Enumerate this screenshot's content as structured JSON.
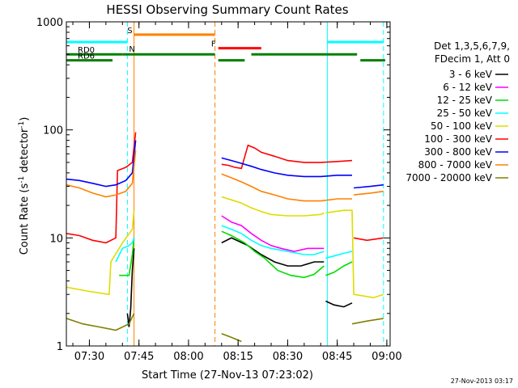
{
  "chart_data": {
    "type": "line",
    "title": "HESSI Observing Summary Count Rates",
    "xlabel": "Start Time (27-Nov-13 07:23:02)",
    "ylabel": "Count Rate (s⁻¹ detector⁻¹)",
    "ylabel_main": "Count Rate (s",
    "ylabel_mid": " detector",
    "ylabel_end": ")",
    "ylabel_sup": "-1",
    "yscale": "log",
    "xlim": [
      "07:23:02",
      "09:01:00"
    ],
    "ylim": [
      1,
      1000
    ],
    "x_ticks": [
      "07:30",
      "07:45",
      "08:00",
      "08:15",
      "08:30",
      "08:45",
      "09:00"
    ],
    "y_ticks": [
      "1",
      "10",
      "100",
      "1000"
    ],
    "timestamp": "27-Nov-2013 03:17",
    "legend": {
      "header1": "Det 1,3,5,6,7,9,",
      "header2": "FDecim 1, Att 0",
      "placement": "right"
    },
    "series": [
      {
        "name": "3 - 6 keV",
        "color": "#000000",
        "segments": [
          {
            "t": [
              "07:41:30",
              "07:42:00",
              "07:42:30",
              "07:43:00",
              "07:43:30"
            ],
            "v": [
              2.0,
              1.5,
              2.2,
              5.0,
              8.0
            ]
          },
          {
            "t": [
              "08:10:00",
              "08:13:00",
              "08:18:00",
              "08:22:00",
              "08:26:00",
              "08:30:00",
              "08:34:00",
              "08:38:00",
              "08:41:00"
            ],
            "v": [
              9.0,
              10.0,
              8.5,
              7.0,
              6.0,
              5.5,
              5.5,
              6.0,
              6.0
            ]
          },
          {
            "t": [
              "08:41:30",
              "08:44:00",
              "08:47:00",
              "08:49:30"
            ],
            "v": [
              2.6,
              2.4,
              2.3,
              2.5
            ]
          }
        ]
      },
      {
        "name": "6 - 12 keV",
        "color": "#ff00ff",
        "segments": [
          {
            "t": [
              "08:10:00",
              "08:13:00",
              "08:16:00",
              "08:19:00",
              "08:22:00",
              "08:25:00",
              "08:28:00",
              "08:32:00",
              "08:36:00",
              "08:40:00",
              "08:41:00"
            ],
            "v": [
              16.0,
              14.0,
              13.0,
              11.0,
              9.5,
              8.5,
              8.0,
              7.5,
              8.0,
              8.0,
              8.0
            ]
          }
        ]
      },
      {
        "name": "12 - 25 keV",
        "color": "#00dd00",
        "segments": [
          {
            "t": [
              "07:39:00",
              "07:40:30",
              "07:42:00",
              "07:43:00",
              "07:43:30"
            ],
            "v": [
              4.5,
              4.5,
              4.5,
              7.0,
              10.0
            ]
          },
          {
            "t": [
              "08:10:00",
              "08:13:00",
              "08:17:00",
              "08:20:00",
              "08:23:00",
              "08:27:00",
              "08:31:00",
              "08:35:00",
              "08:38:00",
              "08:41:00"
            ],
            "v": [
              11.5,
              10.5,
              9.0,
              7.5,
              6.5,
              5.0,
              4.5,
              4.3,
              4.6,
              5.5
            ]
          },
          {
            "t": [
              "08:41:30",
              "08:44:00",
              "08:47:00",
              "08:49:30"
            ],
            "v": [
              4.5,
              4.8,
              5.5,
              6.0
            ]
          }
        ]
      },
      {
        "name": "25 - 50 keV",
        "color": "#00ffff",
        "segments": [
          {
            "t": [
              "07:38:00",
              "07:40:00",
              "07:42:00",
              "07:43:00",
              "07:43:30"
            ],
            "v": [
              6.0,
              8.0,
              8.5,
              9.0,
              10.0
            ]
          },
          {
            "t": [
              "08:10:00",
              "08:13:00",
              "08:16:00",
              "08:19:00",
              "08:22:00",
              "08:25:00",
              "08:30:00",
              "08:35:00",
              "08:38:00",
              "08:41:00"
            ],
            "v": [
              13.0,
              12.0,
              11.0,
              9.5,
              8.5,
              8.0,
              7.5,
              7.0,
              7.0,
              7.5
            ]
          },
          {
            "t": [
              "08:41:30",
              "08:44:00",
              "08:47:00",
              "08:49:30"
            ],
            "v": [
              6.5,
              6.8,
              7.2,
              7.5
            ]
          }
        ]
      },
      {
        "name": "50 - 100 keV",
        "color": "#dddd00",
        "segments": [
          {
            "t": [
              "07:23:02",
              "07:30:00",
              "07:36:00",
              "07:36:30",
              "07:40:00",
              "07:43:00",
              "07:43:30"
            ],
            "v": [
              3.5,
              3.2,
              3.0,
              6.0,
              9.0,
              12.0,
              18.0
            ]
          },
          {
            "t": [
              "08:10:00",
              "08:13:00",
              "08:16:00",
              "08:19:00",
              "08:22:00",
              "08:25:00",
              "08:30:00",
              "08:35:00",
              "08:40:00",
              "08:41:00"
            ],
            "v": [
              24.0,
              22.5,
              21.0,
              19.0,
              17.5,
              16.5,
              16.0,
              16.0,
              16.5,
              17.0
            ]
          },
          {
            "t": [
              "08:41:30",
              "08:44:00",
              "08:47:00",
              "08:49:30",
              "08:50:00",
              "08:56:00",
              "08:59:00"
            ],
            "v": [
              17.0,
              17.5,
              18.0,
              18.0,
              3.0,
              2.8,
              3.0
            ]
          }
        ]
      },
      {
        "name": "100 - 300 keV",
        "color": "#ff0000",
        "segments": [
          {
            "t": [
              "07:23:02",
              "07:27:00",
              "07:31:00",
              "07:35:00",
              "07:38:00",
              "07:38:30",
              "07:41:00",
              "07:43:00",
              "07:44:00"
            ],
            "v": [
              11.0,
              10.5,
              9.5,
              9.0,
              10.0,
              42.0,
              45.0,
              50.0,
              95.0
            ]
          },
          {
            "t": [
              "08:10:00",
              "08:12:00",
              "08:14:00",
              "08:16:00",
              "08:18:00",
              "08:20:00",
              "08:22:00",
              "08:26:00",
              "08:30:00",
              "08:35:00",
              "08:40:00",
              "08:45:00",
              "08:49:30"
            ],
            "v": [
              48.0,
              47.0,
              45.0,
              44.0,
              72.0,
              68.0,
              62.0,
              57.0,
              52.0,
              50.0,
              50.0,
              51.0,
              52.0
            ]
          },
          {
            "t": [
              "08:50:00",
              "08:54:00",
              "08:59:00"
            ],
            "v": [
              10.0,
              9.5,
              10.0
            ]
          }
        ]
      },
      {
        "name": "300 - 800 keV",
        "color": "#0000ff",
        "segments": [
          {
            "t": [
              "07:23:02",
              "07:27:00",
              "07:31:00",
              "07:35:00",
              "07:38:00",
              "07:41:00",
              "07:43:00",
              "07:44:00"
            ],
            "v": [
              35.0,
              34.0,
              32.0,
              30.0,
              31.0,
              34.0,
              40.0,
              80.0
            ]
          },
          {
            "t": [
              "08:10:00",
              "08:13:00",
              "08:16:00",
              "08:19:00",
              "08:22:00",
              "08:26:00",
              "08:30:00",
              "08:35:00",
              "08:40:00",
              "08:45:00",
              "08:49:30"
            ],
            "v": [
              55.0,
              52.0,
              49.0,
              46.0,
              43.0,
              40.0,
              38.0,
              37.0,
              37.0,
              38.0,
              38.0
            ]
          },
          {
            "t": [
              "08:50:00",
              "08:55:00",
              "08:59:00"
            ],
            "v": [
              29.0,
              30.0,
              31.0
            ]
          }
        ]
      },
      {
        "name": "800 - 7000 keV",
        "color": "#ff8000",
        "segments": [
          {
            "t": [
              "07:23:02",
              "07:27:00",
              "07:31:00",
              "07:35:00",
              "07:38:00",
              "07:41:00",
              "07:43:00",
              "07:44:00"
            ],
            "v": [
              31.0,
              29.0,
              26.0,
              24.0,
              25.0,
              27.0,
              32.0,
              65.0
            ]
          },
          {
            "t": [
              "08:10:00",
              "08:13:00",
              "08:16:00",
              "08:19:00",
              "08:22:00",
              "08:26:00",
              "08:30:00",
              "08:35:00",
              "08:40:00",
              "08:45:00",
              "08:49:30"
            ],
            "v": [
              39.0,
              36.0,
              33.0,
              30.0,
              27.0,
              25.0,
              23.0,
              22.0,
              22.0,
              23.0,
              23.0
            ]
          },
          {
            "t": [
              "08:50:00",
              "08:55:00",
              "08:59:00"
            ],
            "v": [
              25.0,
              26.0,
              27.0
            ]
          }
        ]
      },
      {
        "name": "7000 - 20000 keV",
        "color": "#808000",
        "segments": [
          {
            "t": [
              "07:23:02",
              "07:28:00",
              "07:33:00",
              "07:38:00",
              "07:42:00",
              "07:43:30"
            ],
            "v": [
              1.8,
              1.6,
              1.5,
              1.4,
              1.6,
              2.0
            ]
          },
          {
            "t": [
              "08:10:00",
              "08:13:00",
              "08:16:00"
            ],
            "v": [
              1.3,
              1.2,
              1.1
            ]
          },
          {
            "t": [
              "08:49:30",
              "08:54:00",
              "08:59:00"
            ],
            "v": [
              1.6,
              1.7,
              1.8
            ]
          }
        ]
      }
    ],
    "markers": {
      "vlines": [
        {
          "t": "07:41:30",
          "color": "#00ffff",
          "dashed": true
        },
        {
          "t": "07:43:30",
          "color": "#ff8000",
          "dashed": false
        },
        {
          "t": "08:08:00",
          "color": "#ff8000",
          "dashed": true
        },
        {
          "t": "08:42:00",
          "color": "#00ffff",
          "dashed": false
        },
        {
          "t": "08:59:00",
          "color": "#00ffff",
          "dashed": true
        }
      ],
      "hbars": [
        {
          "label": "N",
          "t0": "07:23:02",
          "t1": "07:41:30",
          "level": 650,
          "color": "#00ffff"
        },
        {
          "label": "",
          "t0": "08:42:00",
          "t1": "08:59:00",
          "level": 650,
          "color": "#00ffff"
        },
        {
          "label": "S",
          "t0": "07:43:30",
          "t1": "08:08:00",
          "level": 760,
          "color": "#ff8000"
        },
        {
          "label": "F",
          "t0": "08:09:00",
          "t1": "08:22:00",
          "level": 570,
          "color": "#ff0000"
        },
        {
          "label": "RD0",
          "t0": "07:23:02",
          "t1": "07:40:00",
          "level": 500,
          "color": "#008000"
        },
        {
          "label": "",
          "t0": "07:40:00",
          "t1": "08:08:00",
          "level": 500,
          "color": "#008000"
        },
        {
          "label": "",
          "t0": "08:19:00",
          "t1": "08:51:00",
          "level": 500,
          "color": "#008000"
        },
        {
          "label": "RD6",
          "t0": "07:23:02",
          "t1": "07:37:00",
          "level": 440,
          "color": "#008000"
        },
        {
          "label": "",
          "t0": "08:09:00",
          "t1": "08:17:00",
          "level": 440,
          "color": "#008000"
        },
        {
          "label": "",
          "t0": "08:52:00",
          "t1": "08:59:30",
          "level": 440,
          "color": "#008000"
        }
      ]
    }
  }
}
